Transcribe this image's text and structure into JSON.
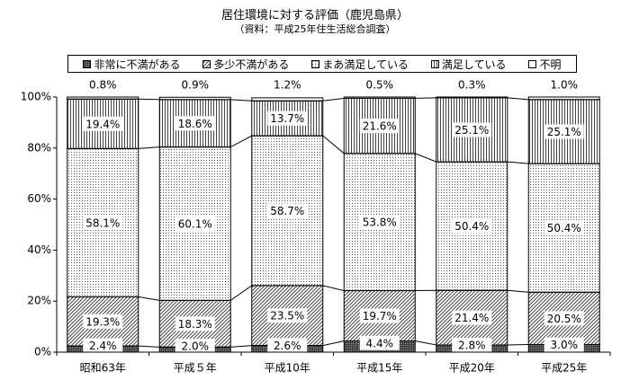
{
  "title": "居住環境に対する評価（鹿児島県）",
  "subtitle": "（資料：平成25年住生活総合調査）",
  "patterns": {
    "非常に不満がある": "dense",
    "多少不満がある": "diag",
    "まあ満足している": "dots",
    "満足している": "vert",
    "不明": "white"
  },
  "chart_data": {
    "type": "bar",
    "stacked": true,
    "percent_stacked": true,
    "categories": [
      "昭和63年",
      "平成５年",
      "平成10年",
      "平成15年",
      "平成20年",
      "平成25年"
    ],
    "series": [
      {
        "name": "非常に不満がある",
        "values": [
          2.4,
          2.0,
          2.6,
          4.4,
          2.8,
          3.0
        ],
        "labels": [
          "2.4%",
          "2.0%",
          "2.6%",
          "4.4%",
          "2.8%",
          "3.0%"
        ]
      },
      {
        "name": "多少不満がある",
        "values": [
          19.3,
          18.3,
          23.5,
          19.7,
          21.4,
          20.5
        ],
        "labels": [
          "19.3%",
          "18.3%",
          "23.5%",
          "19.7%",
          "21.4%",
          "20.5%"
        ]
      },
      {
        "name": "まあ満足している",
        "values": [
          58.1,
          60.1,
          58.7,
          53.8,
          50.4,
          50.4
        ],
        "labels": [
          "58.1%",
          "60.1%",
          "58.7%",
          "53.8%",
          "50.4%",
          "50.4%"
        ]
      },
      {
        "name": "満足している",
        "values": [
          19.4,
          18.6,
          13.7,
          21.6,
          25.1,
          25.1
        ],
        "labels": [
          "19.4%",
          "18.6%",
          "13.7%",
          "21.6%",
          "25.1%",
          "25.1%"
        ]
      },
      {
        "name": "不明",
        "values": [
          0.8,
          0.9,
          1.2,
          0.5,
          0.3,
          1.0
        ],
        "labels": [
          "0.8%",
          "0.9%",
          "1.2%",
          "0.5%",
          "0.3%",
          "1.0%"
        ]
      }
    ],
    "ylim": [
      0,
      100
    ],
    "yticks": [
      0,
      20,
      40,
      60,
      80,
      100
    ],
    "ytick_labels": [
      "0%",
      "20%",
      "40%",
      "60%",
      "80%",
      "100%"
    ],
    "series_lines": true,
    "legend_position": "top",
    "grid": false
  }
}
